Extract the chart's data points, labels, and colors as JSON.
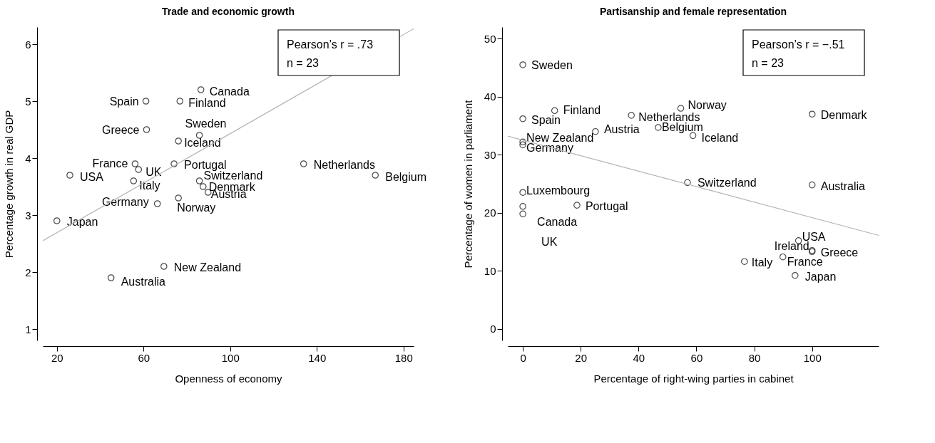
{
  "chart_data": [
    {
      "type": "scatter",
      "title": "Trade and economic growth",
      "xlabel": "Openness of economy",
      "ylabel": "Percentage growth in real GDP",
      "xlim": [
        13.5,
        184.7
      ],
      "ylim": [
        0.8,
        6.3
      ],
      "xticks": [
        20,
        60,
        100,
        140,
        180
      ],
      "yticks": [
        1,
        2,
        3,
        4,
        5,
        6
      ],
      "annotations": [
        "Pearson’s r = .73",
        "n = 23"
      ],
      "series": [
        {
          "marker": "circle",
          "color": "#000000",
          "x": [
            86.5,
            61.1,
            76.8,
            61.4,
            85.8,
            76.1,
            56.1,
            57.7,
            74.1,
            133.9,
            26,
            55.4,
            85.8,
            87.5,
            167,
            89.8,
            66.4,
            76.1,
            20,
            69.4,
            45
          ],
          "values": [
            5.2,
            5.0,
            5.0,
            4.5,
            4.4,
            4.3,
            3.9,
            3.8,
            3.9,
            3.9,
            3.7,
            3.6,
            3.6,
            3.5,
            3.7,
            3.4,
            3.2,
            3.3,
            2.9,
            2.1,
            1.9
          ],
          "value_labels": [
            "Canada",
            "Spain",
            "Finland",
            "Greece",
            "Sweden",
            "Iceland",
            "France",
            "UK",
            "Portugal",
            "Netherlands",
            "USA",
            "Italy",
            "Switzerland",
            "Denmark",
            "Belgium",
            "Austria",
            "Germany",
            "Norway",
            "Japan",
            "New Zealand",
            "Australia"
          ]
        },
        {
          "type": "line",
          "color": "#b3b3b3",
          "x": [
            13.5,
            184.7
          ],
          "values": [
            2.55,
            6.27
          ]
        }
      ]
    },
    {
      "type": "scatter",
      "title": "Partisanship and female representation",
      "xlabel": "Percentage of right-wing parties in cabinet",
      "ylabel": "Percentage of women in parliament",
      "xlim": [
        -5.2,
        123
      ],
      "ylim": [
        -2,
        52
      ],
      "xticks": [
        0,
        20,
        40,
        60,
        80,
        100
      ],
      "yticks": [
        0,
        10,
        20,
        30,
        40,
        50
      ],
      "annotations": [
        "Pearson’s r = −.51",
        "n = 23"
      ],
      "series": [
        {
          "marker": "circle",
          "color": "#000000",
          "x": [
            0,
            11,
            0,
            37.5,
            54.6,
            100,
            25.1,
            46.8,
            58.8,
            0,
            0,
            56.9,
            100,
            0,
            18.7,
            0,
            0,
            95.3,
            100,
            100,
            89.9,
            76.6,
            94.1
          ],
          "values": [
            45.5,
            37.6,
            36.2,
            36.8,
            38.0,
            37.0,
            34.0,
            34.7,
            33.3,
            32.2,
            31.7,
            25.2,
            24.8,
            23.5,
            21.3,
            21.1,
            19.8,
            15.2,
            13.5,
            13.3,
            12.4,
            11.6,
            9.2
          ],
          "value_labels": [
            "Sweden",
            "Finland",
            "Spain",
            "Netherlands",
            "Norway",
            "Denmark",
            "Austria",
            "Belgium",
            "Iceland",
            "New Zealand",
            "Germany",
            "Switzerland",
            "Australia",
            "Luxembourg",
            "Portugal",
            "Canada",
            "UK",
            "USA",
            "Ireland",
            "Greece",
            "France",
            "Italy",
            "Japan"
          ]
        },
        {
          "type": "line",
          "color": "#b3b3b3",
          "x": [
            -5.2,
            123
          ],
          "values": [
            33.2,
            16.1
          ]
        }
      ]
    }
  ]
}
